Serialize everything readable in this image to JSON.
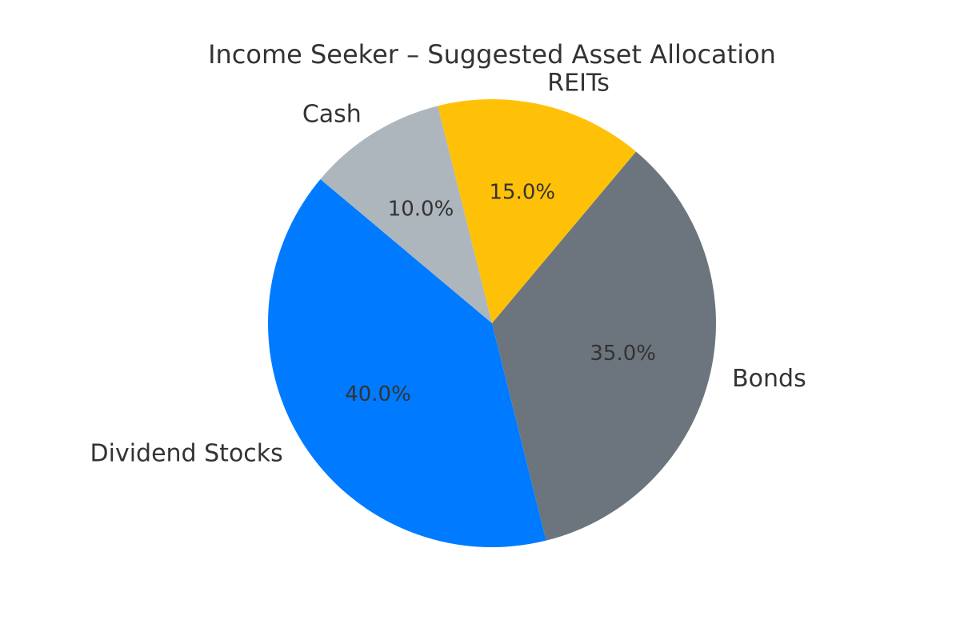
{
  "chart_data": {
    "type": "pie",
    "title": "Income Seeker – Suggested Asset Allocation",
    "start_angle_deg": 140,
    "direction": "counterclockwise",
    "slices": [
      {
        "label": "Dividend Stocks",
        "value": 40.0,
        "pct_label": "40.0%",
        "color": "#007bff"
      },
      {
        "label": "Bonds",
        "value": 35.0,
        "pct_label": "35.0%",
        "color": "#6c757d"
      },
      {
        "label": "REITs",
        "value": 15.0,
        "pct_label": "15.0%",
        "color": "#ffc107"
      },
      {
        "label": "Cash",
        "value": 10.0,
        "pct_label": "10.0%",
        "color": "#adb5bd"
      }
    ]
  }
}
